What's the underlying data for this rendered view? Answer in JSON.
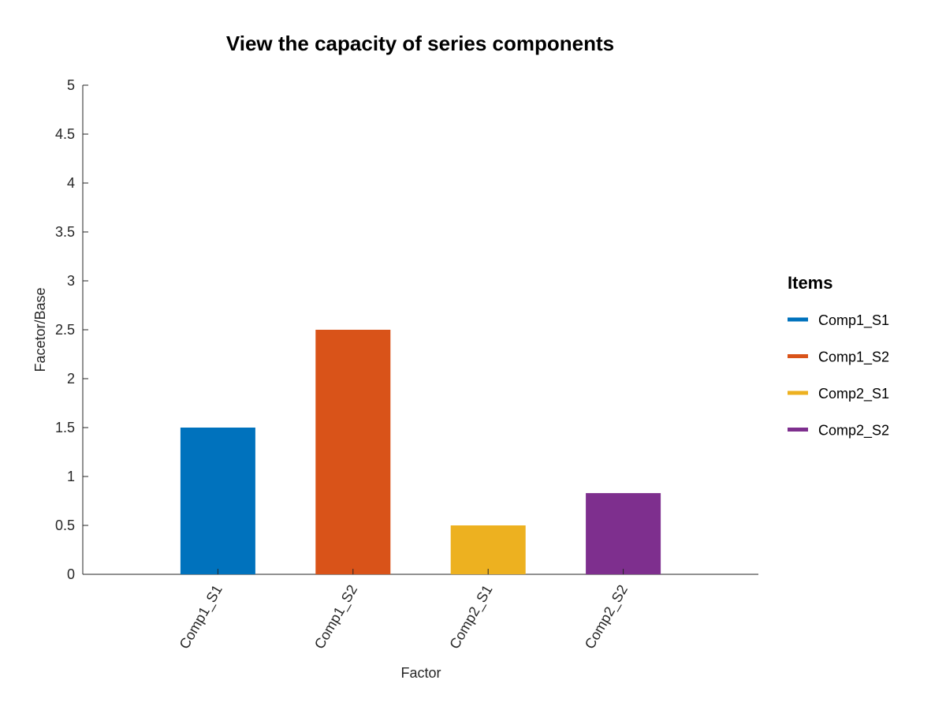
{
  "chart_data": {
    "type": "bar",
    "title": "View the capacity of series components",
    "xlabel": "Factor",
    "ylabel": "Facetor/Base",
    "categories": [
      "Comp1_S1",
      "Comp1_S2",
      "Comp2_S1",
      "Comp2_S2"
    ],
    "values": [
      1.5,
      2.5,
      0.5,
      0.83
    ],
    "colors": [
      "#0072BD",
      "#D95319",
      "#EDB120",
      "#7E2F8E"
    ],
    "ylim": [
      0,
      5
    ],
    "yticks": [
      0,
      0.5,
      1,
      1.5,
      2,
      2.5,
      3,
      3.5,
      4,
      4.5,
      5
    ],
    "ytick_labels": [
      "0",
      "0.5",
      "1",
      "1.5",
      "2",
      "2.5",
      "3",
      "3.5",
      "4",
      "4.5",
      "5"
    ],
    "grid": false,
    "legend": {
      "title": "Items",
      "placement": "right",
      "entries": [
        "Comp1_S1",
        "Comp1_S2",
        "Comp2_S1",
        "Comp2_S2"
      ]
    }
  }
}
